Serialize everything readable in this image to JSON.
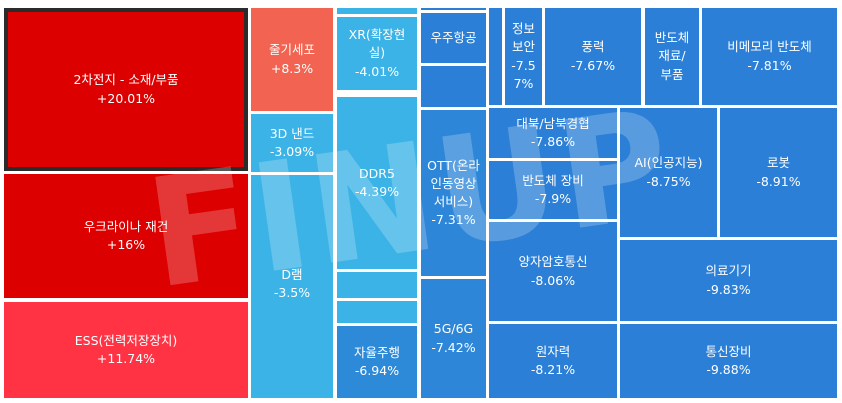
{
  "chart_data": {
    "type": "treemap",
    "value_unit": "%",
    "tiles": [
      {
        "name": "2차전지 - 소재/부품",
        "label": "2차전지 - 소재/부품",
        "value": 20.01,
        "value_text": "+20.01%",
        "color": "#dd0000",
        "selected": true
      },
      {
        "name": "우크라이나 재건",
        "label": "우크라이나 재건",
        "value": 16,
        "value_text": "+16%",
        "color": "#dd0000"
      },
      {
        "name": "ESS(전력저장장치)",
        "label": "ESS(전력저장장치)",
        "value": 11.74,
        "value_text": "+11.74%",
        "color": "#ff3344"
      },
      {
        "name": "줄기세포",
        "label": "줄기세포",
        "value": 8.3,
        "value_text": "+8.3%",
        "color": "#f26451"
      },
      {
        "name": "3D 낸드",
        "label": "3D 낸드",
        "value": -3.09,
        "value_text": "-3.09%",
        "color": "#3bb3e6"
      },
      {
        "name": "D램",
        "label": "D램",
        "value": -3.5,
        "value_text": "-3.5%",
        "color": "#3bb3e6"
      },
      {
        "name": "XR(확장현실)",
        "label": "XR(확장현\n실)",
        "value": -4.01,
        "value_text": "-4.01%",
        "color": "#3bb3e6"
      },
      {
        "name": "DDR5",
        "label": "DDR5",
        "value": -4.39,
        "value_text": "-4.39%",
        "color": "#3bb3e6"
      },
      {
        "name": "자율주행",
        "label": "자율주행",
        "value": -6.94,
        "value_text": "-6.94%",
        "color": "#2d8ad8"
      },
      {
        "name": "우주항공",
        "label": "우주항공",
        "value": null,
        "value_text": "",
        "color": "#2b7fd6"
      },
      {
        "name": "OTT(온라인동영상서비스)",
        "label": "OTT(온라\n인동영상\n서비스)",
        "value": -7.31,
        "value_text": "-7.31%",
        "color": "#2d86d8"
      },
      {
        "name": "5G/6G",
        "label": "5G/6G",
        "value": -7.42,
        "value_text": "-7.42%",
        "color": "#2d86d8"
      },
      {
        "name": "정보보안",
        "label": "정보\n보안",
        "value": -7.57,
        "value_text": "-7.5\n7%",
        "color": "#2b7fd6"
      },
      {
        "name": "풍력",
        "label": "풍력",
        "value": -7.67,
        "value_text": "-7.67%",
        "color": "#2b7fd6"
      },
      {
        "name": "반도체 재료/부품",
        "label": "반도체\n재료/\n부품",
        "value": null,
        "value_text": "",
        "color": "#2b7fd6"
      },
      {
        "name": "비메모리 반도체",
        "label": "비메모리 반도체",
        "value": -7.81,
        "value_text": "-7.81%",
        "color": "#2b7fd6"
      },
      {
        "name": "대북/남북경협",
        "label": "대북/남북경협",
        "value": -7.86,
        "value_text": "-7.86%",
        "color": "#2b7fd6"
      },
      {
        "name": "반도체 장비",
        "label": "반도체 장비",
        "value": -7.9,
        "value_text": "-7.9%",
        "color": "#2b7fd6"
      },
      {
        "name": "양자암호통신",
        "label": "양자암호통신",
        "value": -8.06,
        "value_text": "-8.06%",
        "color": "#2b7fd6"
      },
      {
        "name": "원자력",
        "label": "원자력",
        "value": -8.21,
        "value_text": "-8.21%",
        "color": "#2b7fd6"
      },
      {
        "name": "AI(인공지능)",
        "label": "AI(인공지능)",
        "value": -8.75,
        "value_text": "-8.75%",
        "color": "#2b7fd6"
      },
      {
        "name": "로봇",
        "label": "로봇",
        "value": -8.91,
        "value_text": "-8.91%",
        "color": "#2b7fd6"
      },
      {
        "name": "의료기기",
        "label": "의료기기",
        "value": -9.83,
        "value_text": "-9.83%",
        "color": "#2b7fd6"
      },
      {
        "name": "통신장비",
        "label": "통신장비",
        "value": -9.88,
        "value_text": "-9.88%",
        "color": "#2b7fd6"
      }
    ],
    "unlabeled_tiles": [
      {
        "group": "3D 낸드",
        "color": "#3bb3e6"
      },
      {
        "group": "XR(확장현실)",
        "color": "#3bb3e6"
      },
      {
        "group": "DDR5",
        "color": "#3bb3e6"
      },
      {
        "group": "DDR5",
        "color": "#3bb3e6"
      },
      {
        "group": "우주항공",
        "color": "#2b7fd6"
      },
      {
        "group": "우주항공",
        "color": "#2b7fd6"
      },
      {
        "group": "정보보안",
        "color": "#2b7fd6"
      }
    ]
  },
  "watermark": "FINUP"
}
